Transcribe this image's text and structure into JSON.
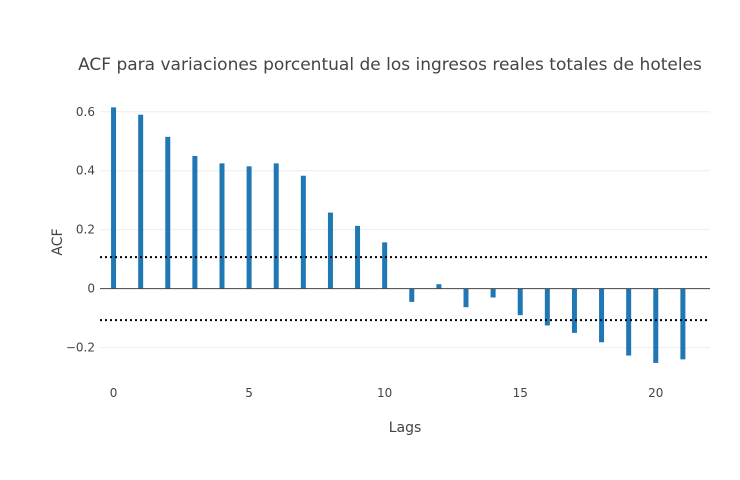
{
  "chart_data": {
    "type": "bar",
    "title": "ACF para variaciones porcentual de los ingresos reales totales de hoteles",
    "xlabel": "Lags",
    "ylabel": "ACF",
    "x": [
      0,
      1,
      2,
      3,
      4,
      5,
      6,
      7,
      8,
      9,
      10,
      11,
      12,
      13,
      14,
      15,
      16,
      17,
      18,
      19,
      20,
      21
    ],
    "values": [
      0.615,
      0.59,
      0.515,
      0.45,
      0.425,
      0.415,
      0.425,
      0.383,
      0.258,
      0.213,
      0.157,
      -0.045,
      0.015,
      -0.063,
      -0.03,
      -0.09,
      -0.125,
      -0.15,
      -0.182,
      -0.227,
      -0.252,
      -0.24
    ],
    "confidence_band": [
      0.107,
      -0.107
    ],
    "xlim": [
      -0.5,
      22
    ],
    "ylim": [
      -0.31,
      0.64
    ],
    "xticks": [
      0,
      5,
      10,
      15,
      20
    ],
    "xtick_labels": [
      "0",
      "5",
      "10",
      "15",
      "20"
    ],
    "yticks": [
      0.6,
      0.4,
      0.2,
      0,
      -0.2
    ],
    "ytick_labels": [
      "0.6",
      "0.4",
      "0.2",
      "0",
      "−0.2"
    ],
    "grid": true,
    "bar_color": "#1f77b4",
    "band_color": "#000000",
    "gridline_color": "#eeeeee",
    "zeroline_color": "#444444"
  }
}
